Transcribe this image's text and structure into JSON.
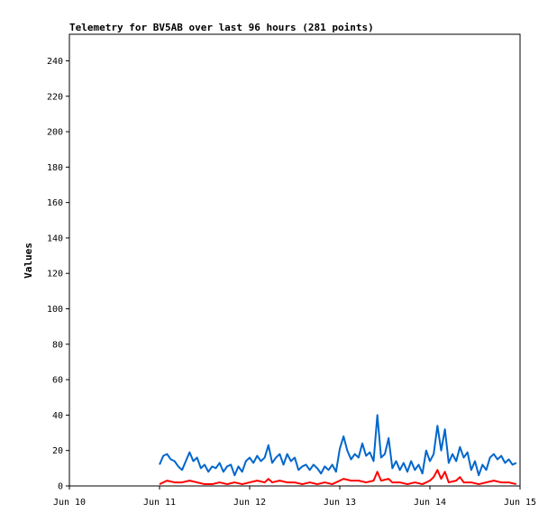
{
  "chart_data": {
    "type": "line",
    "title": "Telemetry for BV5AB over last 96 hours (281 points)",
    "xlabel": "",
    "ylabel": "Values",
    "ylim": [
      0,
      255
    ],
    "yticks": [
      0,
      20,
      40,
      60,
      80,
      100,
      120,
      140,
      160,
      180,
      200,
      220,
      240
    ],
    "xlim": [
      "2024-06-10T00:00",
      "2024-06-15T00:00"
    ],
    "xticks": [
      {
        "value": "2024-06-10T00:00",
        "label": "Jun 10"
      },
      {
        "value": "2024-06-11T00:00",
        "label": "Jun 11"
      },
      {
        "value": "2024-06-12T00:00",
        "label": "Jun 12"
      },
      {
        "value": "2024-06-13T00:00",
        "label": "Jun 13"
      },
      {
        "value": "2024-06-14T00:00",
        "label": "Jun 14"
      },
      {
        "value": "2024-06-15T00:00",
        "label": "Jun 15"
      }
    ],
    "grid": false,
    "series": [
      {
        "color": "#0066cc",
        "points": [
          [
            "2024-06-11T00:00",
            12
          ],
          [
            "2024-06-11T01:00",
            17
          ],
          [
            "2024-06-11T02:00",
            18
          ],
          [
            "2024-06-11T03:00",
            15
          ],
          [
            "2024-06-11T04:00",
            14
          ],
          [
            "2024-06-11T05:00",
            11
          ],
          [
            "2024-06-11T06:00",
            9
          ],
          [
            "2024-06-11T07:00",
            14
          ],
          [
            "2024-06-11T08:00",
            19
          ],
          [
            "2024-06-11T09:00",
            14
          ],
          [
            "2024-06-11T10:00",
            16
          ],
          [
            "2024-06-11T11:00",
            10
          ],
          [
            "2024-06-11T12:00",
            12
          ],
          [
            "2024-06-11T13:00",
            8
          ],
          [
            "2024-06-11T14:00",
            11
          ],
          [
            "2024-06-11T15:00",
            10
          ],
          [
            "2024-06-11T16:00",
            13
          ],
          [
            "2024-06-11T17:00",
            8
          ],
          [
            "2024-06-11T18:00",
            11
          ],
          [
            "2024-06-11T19:00",
            12
          ],
          [
            "2024-06-11T20:00",
            6
          ],
          [
            "2024-06-11T21:00",
            11
          ],
          [
            "2024-06-11T22:00",
            8
          ],
          [
            "2024-06-11T23:00",
            14
          ],
          [
            "2024-06-12T00:00",
            16
          ],
          [
            "2024-06-12T01:00",
            13
          ],
          [
            "2024-06-12T02:00",
            17
          ],
          [
            "2024-06-12T03:00",
            14
          ],
          [
            "2024-06-12T04:00",
            16
          ],
          [
            "2024-06-12T05:00",
            23
          ],
          [
            "2024-06-12T06:00",
            13
          ],
          [
            "2024-06-12T07:00",
            16
          ],
          [
            "2024-06-12T08:00",
            18
          ],
          [
            "2024-06-12T09:00",
            12
          ],
          [
            "2024-06-12T10:00",
            18
          ],
          [
            "2024-06-12T11:00",
            14
          ],
          [
            "2024-06-12T12:00",
            16
          ],
          [
            "2024-06-12T13:00",
            9
          ],
          [
            "2024-06-12T14:00",
            11
          ],
          [
            "2024-06-12T15:00",
            12
          ],
          [
            "2024-06-12T16:00",
            9
          ],
          [
            "2024-06-12T17:00",
            12
          ],
          [
            "2024-06-12T18:00",
            10
          ],
          [
            "2024-06-12T19:00",
            7
          ],
          [
            "2024-06-12T20:00",
            11
          ],
          [
            "2024-06-12T21:00",
            9
          ],
          [
            "2024-06-12T22:00",
            12
          ],
          [
            "2024-06-12T23:00",
            8
          ],
          [
            "2024-06-13T00:00",
            21
          ],
          [
            "2024-06-13T01:00",
            28
          ],
          [
            "2024-06-13T02:00",
            20
          ],
          [
            "2024-06-13T03:00",
            15
          ],
          [
            "2024-06-13T04:00",
            18
          ],
          [
            "2024-06-13T05:00",
            16
          ],
          [
            "2024-06-13T06:00",
            24
          ],
          [
            "2024-06-13T07:00",
            17
          ],
          [
            "2024-06-13T08:00",
            19
          ],
          [
            "2024-06-13T09:00",
            14
          ],
          [
            "2024-06-13T10:00",
            40
          ],
          [
            "2024-06-13T11:00",
            16
          ],
          [
            "2024-06-13T12:00",
            18
          ],
          [
            "2024-06-13T13:00",
            27
          ],
          [
            "2024-06-13T14:00",
            10
          ],
          [
            "2024-06-13T15:00",
            14
          ],
          [
            "2024-06-13T16:00",
            9
          ],
          [
            "2024-06-13T17:00",
            13
          ],
          [
            "2024-06-13T18:00",
            8
          ],
          [
            "2024-06-13T19:00",
            14
          ],
          [
            "2024-06-13T20:00",
            9
          ],
          [
            "2024-06-13T21:00",
            12
          ],
          [
            "2024-06-13T22:00",
            7
          ],
          [
            "2024-06-13T23:00",
            20
          ],
          [
            "2024-06-14T00:00",
            14
          ],
          [
            "2024-06-14T01:00",
            18
          ],
          [
            "2024-06-14T02:00",
            34
          ],
          [
            "2024-06-14T03:00",
            20
          ],
          [
            "2024-06-14T04:00",
            32
          ],
          [
            "2024-06-14T05:00",
            13
          ],
          [
            "2024-06-14T06:00",
            18
          ],
          [
            "2024-06-14T07:00",
            14
          ],
          [
            "2024-06-14T08:00",
            22
          ],
          [
            "2024-06-14T09:00",
            16
          ],
          [
            "2024-06-14T10:00",
            19
          ],
          [
            "2024-06-14T11:00",
            9
          ],
          [
            "2024-06-14T12:00",
            14
          ],
          [
            "2024-06-14T13:00",
            6
          ],
          [
            "2024-06-14T14:00",
            12
          ],
          [
            "2024-06-14T15:00",
            9
          ],
          [
            "2024-06-14T16:00",
            16
          ],
          [
            "2024-06-14T17:00",
            18
          ],
          [
            "2024-06-14T18:00",
            15
          ],
          [
            "2024-06-14T19:00",
            17
          ],
          [
            "2024-06-14T20:00",
            13
          ],
          [
            "2024-06-14T21:00",
            15
          ],
          [
            "2024-06-14T22:00",
            12
          ],
          [
            "2024-06-14T23:00",
            13
          ]
        ]
      },
      {
        "color": "#ff0000",
        "points": [
          [
            "2024-06-11T00:00",
            1
          ],
          [
            "2024-06-11T02:00",
            3
          ],
          [
            "2024-06-11T04:00",
            2
          ],
          [
            "2024-06-11T06:00",
            2
          ],
          [
            "2024-06-11T08:00",
            3
          ],
          [
            "2024-06-11T10:00",
            2
          ],
          [
            "2024-06-11T12:00",
            1
          ],
          [
            "2024-06-11T14:00",
            1
          ],
          [
            "2024-06-11T16:00",
            2
          ],
          [
            "2024-06-11T18:00",
            1
          ],
          [
            "2024-06-11T20:00",
            2
          ],
          [
            "2024-06-11T22:00",
            1
          ],
          [
            "2024-06-12T00:00",
            2
          ],
          [
            "2024-06-12T02:00",
            3
          ],
          [
            "2024-06-12T04:00",
            2
          ],
          [
            "2024-06-12T05:00",
            4
          ],
          [
            "2024-06-12T06:00",
            2
          ],
          [
            "2024-06-12T08:00",
            3
          ],
          [
            "2024-06-12T10:00",
            2
          ],
          [
            "2024-06-12T12:00",
            2
          ],
          [
            "2024-06-12T14:00",
            1
          ],
          [
            "2024-06-12T16:00",
            2
          ],
          [
            "2024-06-12T18:00",
            1
          ],
          [
            "2024-06-12T20:00",
            2
          ],
          [
            "2024-06-12T22:00",
            1
          ],
          [
            "2024-06-13T00:00",
            3
          ],
          [
            "2024-06-13T01:00",
            4
          ],
          [
            "2024-06-13T03:00",
            3
          ],
          [
            "2024-06-13T05:00",
            3
          ],
          [
            "2024-06-13T07:00",
            2
          ],
          [
            "2024-06-13T09:00",
            3
          ],
          [
            "2024-06-13T10:00",
            8
          ],
          [
            "2024-06-13T11:00",
            3
          ],
          [
            "2024-06-13T13:00",
            4
          ],
          [
            "2024-06-13T14:00",
            2
          ],
          [
            "2024-06-13T16:00",
            2
          ],
          [
            "2024-06-13T18:00",
            1
          ],
          [
            "2024-06-13T20:00",
            2
          ],
          [
            "2024-06-13T22:00",
            1
          ],
          [
            "2024-06-14T00:00",
            3
          ],
          [
            "2024-06-14T01:00",
            5
          ],
          [
            "2024-06-14T02:00",
            9
          ],
          [
            "2024-06-14T03:00",
            4
          ],
          [
            "2024-06-14T04:00",
            8
          ],
          [
            "2024-06-14T05:00",
            2
          ],
          [
            "2024-06-14T07:00",
            3
          ],
          [
            "2024-06-14T08:00",
            5
          ],
          [
            "2024-06-14T09:00",
            2
          ],
          [
            "2024-06-14T11:00",
            2
          ],
          [
            "2024-06-14T13:00",
            1
          ],
          [
            "2024-06-14T15:00",
            2
          ],
          [
            "2024-06-14T17:00",
            3
          ],
          [
            "2024-06-14T19:00",
            2
          ],
          [
            "2024-06-14T21:00",
            2
          ],
          [
            "2024-06-14T23:00",
            1
          ]
        ]
      }
    ]
  }
}
